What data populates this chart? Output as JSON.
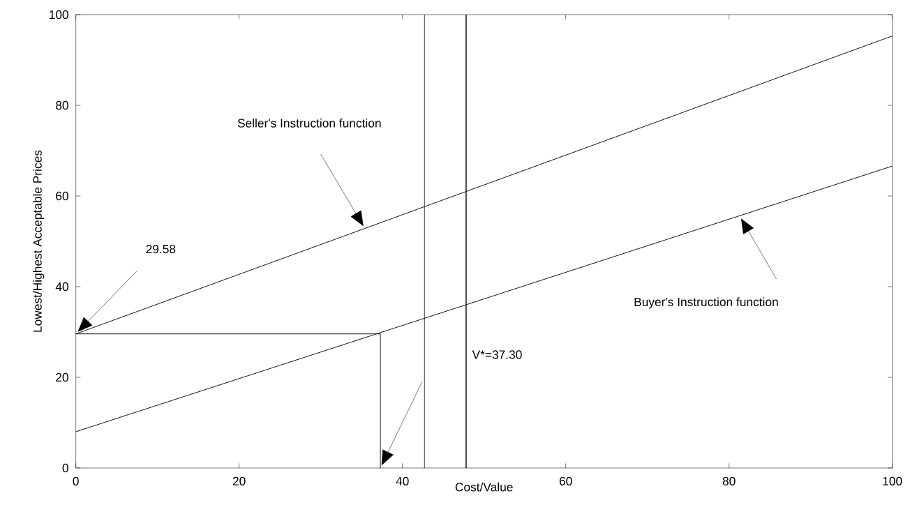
{
  "chart_data": {
    "type": "line",
    "xlabel": "Cost/Value",
    "ylabel": "Lowest/Highest Acceptable Prices",
    "xlim": [
      0,
      100
    ],
    "ylim": [
      0,
      100
    ],
    "xticks": [
      0,
      20,
      40,
      60,
      80,
      100
    ],
    "yticks": [
      0,
      20,
      40,
      60,
      80,
      100
    ],
    "series": [
      {
        "x": [
          0,
          100
        ],
        "values": [
          29.58,
          95.3
        ],
        "color": "#000000"
      },
      {
        "x": [
          0,
          100
        ],
        "values": [
          8,
          66.6
        ],
        "color": "#000000"
      },
      {
        "x": [
          0,
          37.3,
          37.3
        ],
        "values": [
          29.58,
          29.58,
          0
        ],
        "color": "#000000"
      }
    ],
    "ref_lines": [
      {
        "axis": "x",
        "value": 42.7
      },
      {
        "axis": "x",
        "value": 47.8
      }
    ],
    "annotations": [
      "29.58",
      "Seller's Instruction function",
      "Buyer's Instruction function",
      "V*=37.30"
    ]
  }
}
